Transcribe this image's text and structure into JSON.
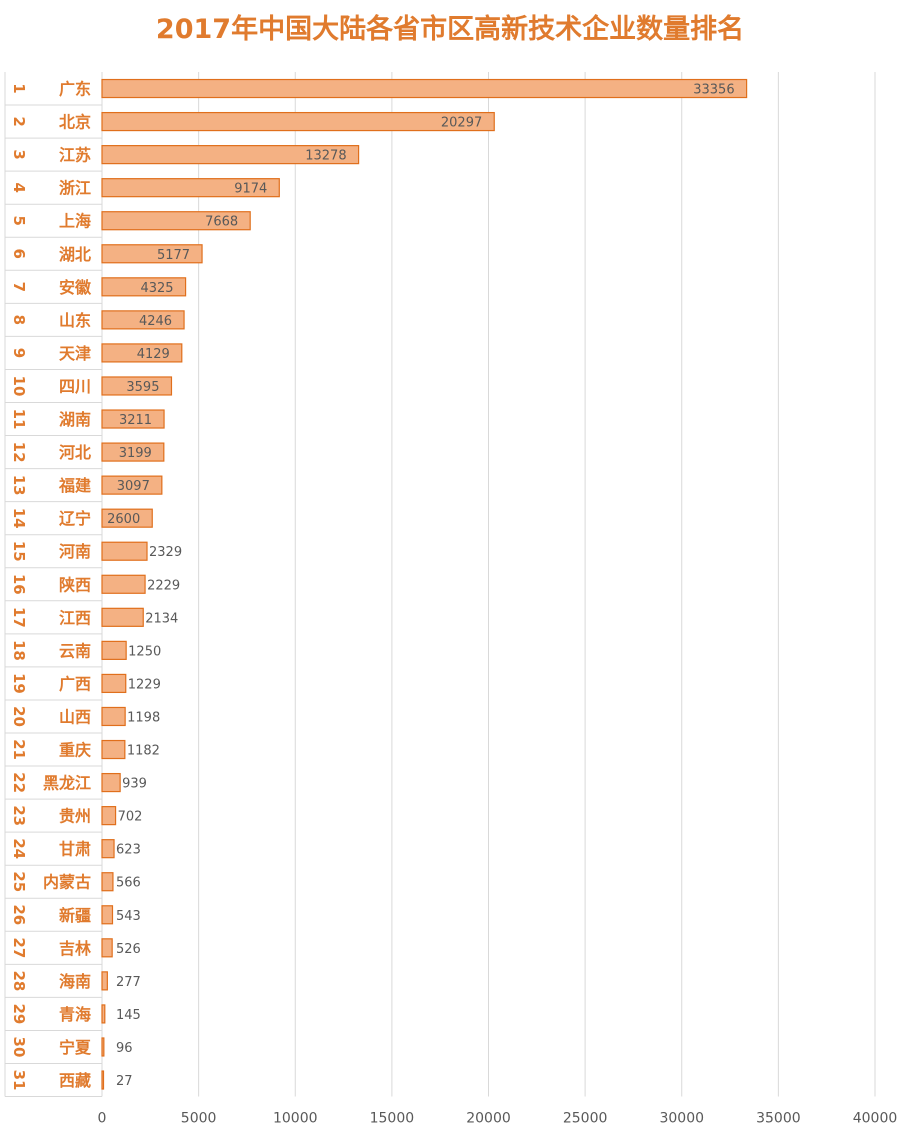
{
  "chart_data": {
    "type": "bar",
    "orientation": "horizontal",
    "title": "2017年中国大陆各省市区高新技术企业数量排名",
    "xlabel": "",
    "ylabel": "",
    "xlim": [
      0,
      40000
    ],
    "x_ticks": [
      0,
      5000,
      10000,
      15000,
      20000,
      25000,
      30000,
      35000,
      40000
    ],
    "grid": "vertical",
    "ranks": [
      "1",
      "2",
      "3",
      "4",
      "5",
      "6",
      "7",
      "8",
      "9",
      "10",
      "11",
      "12",
      "13",
      "14",
      "15",
      "16",
      "17",
      "18",
      "19",
      "20",
      "21",
      "22",
      "23",
      "24",
      "25",
      "26",
      "27",
      "28",
      "29",
      "30",
      "31"
    ],
    "categories": [
      "广东",
      "北京",
      "江苏",
      "浙江",
      "上海",
      "湖北",
      "安徽",
      "山东",
      "天津",
      "四川",
      "湖南",
      "河北",
      "福建",
      "辽宁",
      "河南",
      "陕西",
      "江西",
      "云南",
      "广西",
      "山西",
      "重庆",
      "黑龙江",
      "贵州",
      "甘肃",
      "内蒙古",
      "新疆",
      "吉林",
      "海南",
      "青海",
      "宁夏",
      "西藏"
    ],
    "values": [
      33356,
      20297,
      13278,
      9174,
      7668,
      5177,
      4325,
      4246,
      4129,
      3595,
      3211,
      3199,
      3097,
      2600,
      2329,
      2229,
      2134,
      1250,
      1229,
      1198,
      1182,
      939,
      702,
      623,
      566,
      543,
      526,
      277,
      145,
      96,
      27
    ]
  },
  "colors": {
    "title": "#e07b2e",
    "bar_fill": "#f4b183",
    "bar_stroke": "#e06f1c",
    "label": "#e07b2e",
    "value_text": "#595959",
    "grid": "#d9d9d9",
    "axis_text": "#595959"
  }
}
